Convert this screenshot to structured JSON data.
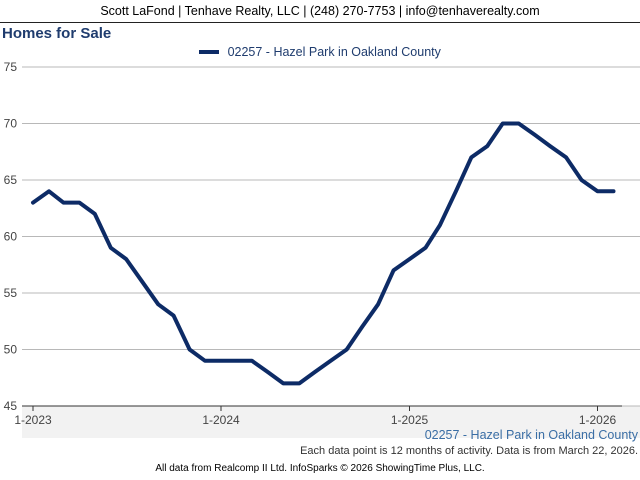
{
  "header": {
    "contact_line": "Scott LaFond | Tenhave Realty, LLC | (248) 270-7753 | info@tenhaverealty.com"
  },
  "chart_data": {
    "type": "line",
    "title": "Homes for Sale",
    "ylim": [
      45,
      75
    ],
    "yticks": [
      45,
      50,
      55,
      60,
      65,
      70,
      75
    ],
    "xticks": [
      "1-2023",
      "1-2024",
      "1-2025",
      "1-2026"
    ],
    "grid": true,
    "legend": "top-center",
    "series": [
      {
        "name": "02257 - Hazel Park in Oakland County",
        "color": "#0d2b66",
        "x": [
          "2023-01",
          "2023-02",
          "2023-03",
          "2023-04",
          "2023-05",
          "2023-06",
          "2023-07",
          "2023-08",
          "2023-09",
          "2023-10",
          "2023-11",
          "2023-12",
          "2024-01",
          "2024-02",
          "2024-03",
          "2024-04",
          "2024-05",
          "2024-06",
          "2024-07",
          "2024-08",
          "2024-09",
          "2024-10",
          "2024-11",
          "2024-12",
          "2025-01",
          "2025-02",
          "2025-03",
          "2025-04",
          "2025-05",
          "2025-06",
          "2025-07",
          "2025-08",
          "2025-09",
          "2025-10",
          "2025-11",
          "2025-12",
          "2026-01",
          "2026-02"
        ],
        "values": [
          63,
          64,
          63,
          63,
          62,
          59,
          58,
          56,
          54,
          53,
          50,
          49,
          49,
          49,
          49,
          48,
          47,
          47,
          48,
          49,
          50,
          52,
          54,
          57,
          58,
          59,
          61,
          64,
          67,
          68,
          70,
          70,
          69,
          68,
          67,
          65,
          64,
          64
        ]
      }
    ]
  },
  "footer": {
    "series_label": "02257 - Hazel Park in Oakland County",
    "note": "Each data point is 12 months of activity. Data is from March 22, 2026.",
    "credit": "All data from Realcomp II Ltd. InfoSparks © 2026 ShowingTime Plus, LLC."
  }
}
